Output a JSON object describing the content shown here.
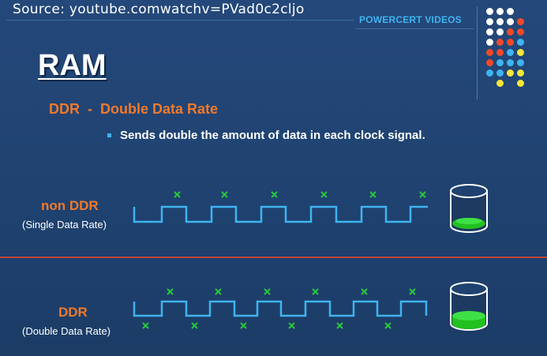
{
  "header": {
    "source": "Source: youtube.comwatchv=PVad0c2cljo",
    "brand": "POWERCERT VIDEOS"
  },
  "slide": {
    "title": "RAM",
    "subtitle": "DDR  -  Double Data Rate",
    "bullet": "Sends double the amount of data in each clock signal."
  },
  "rows": {
    "non_ddr": {
      "label": "non DDR",
      "sublabel": "(Single Data Rate)"
    },
    "ddr": {
      "label": "DDR",
      "sublabel": "(Double Data Rate)"
    }
  },
  "colors": {
    "background": "#22456e",
    "accent_orange": "#f1792b",
    "accent_blue": "#3fb4f0",
    "marker_green": "#28c83c",
    "divider_red": "#c0463c",
    "dots": [
      "#ffffff",
      "#f04a2a",
      "#3fb4f0",
      "#f5e63a"
    ]
  },
  "icons": [
    "x-marker-icon",
    "container-icon",
    "logo-dots-icon"
  ]
}
